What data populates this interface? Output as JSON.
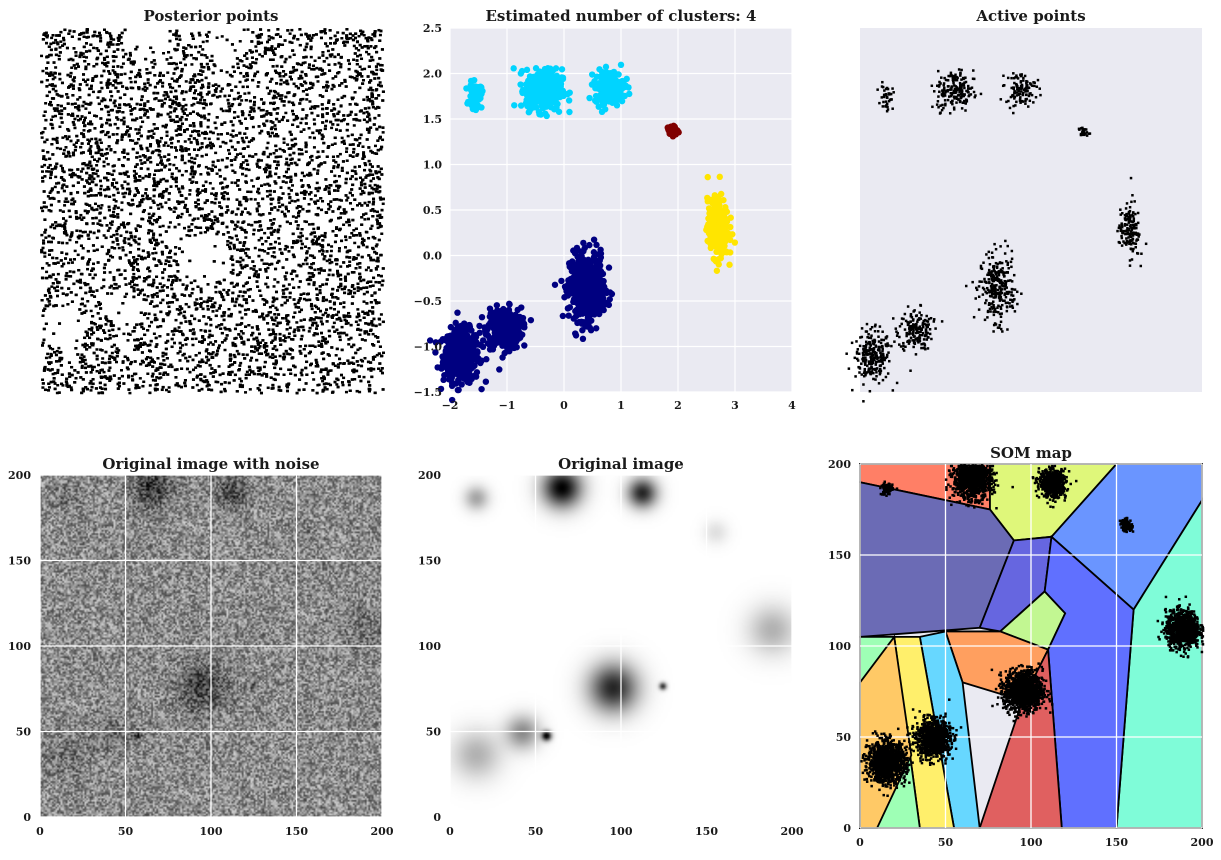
{
  "chart_data": [
    {
      "type": "scatter",
      "title": "Posterior points",
      "axes_visible": false,
      "background": "#ffffff",
      "point_color": "#000000",
      "description_points": "dense random black points; sparse gaps at cluster centers"
    },
    {
      "type": "scatter",
      "title": "Estimated number of clusters: 4",
      "xlim": [
        -2,
        4
      ],
      "ylim": [
        -1.5,
        2.5
      ],
      "xticks": [
        "−2",
        "−1",
        "0",
        "1",
        "2",
        "3",
        "4"
      ],
      "yticks": [
        "−1.5",
        "−1.0",
        "−0.5",
        "0.0",
        "0.5",
        "1.0",
        "1.5",
        "2.0",
        "2.5"
      ],
      "grid": true,
      "background": "#eaeaf2",
      "clusters": [
        {
          "color": "#000080",
          "blobs": [
            {
              "cx": -1.8,
              "cy": -1.1,
              "rx": 0.35,
              "ry": 0.32
            },
            {
              "cx": -1.05,
              "cy": -0.8,
              "rx": 0.33,
              "ry": 0.25
            },
            {
              "cx": 0.4,
              "cy": -0.35,
              "rx": 0.33,
              "ry": 0.4
            }
          ]
        },
        {
          "color": "#00d4ff",
          "blobs": [
            {
              "cx": -1.55,
              "cy": 1.75,
              "rx": 0.12,
              "ry": 0.15
            },
            {
              "cx": -0.35,
              "cy": 1.82,
              "rx": 0.35,
              "ry": 0.25
            },
            {
              "cx": 0.8,
              "cy": 1.85,
              "rx": 0.28,
              "ry": 0.2
            }
          ]
        },
        {
          "color": "#800000",
          "blobs": [
            {
              "cx": 1.9,
              "cy": 1.37,
              "rx": 0.1,
              "ry": 0.06
            }
          ]
        },
        {
          "color": "#ffe500",
          "blobs": [
            {
              "cx": 2.7,
              "cy": 0.3,
              "rx": 0.2,
              "ry": 0.35
            }
          ]
        }
      ]
    },
    {
      "type": "scatter",
      "title": "Active points",
      "axes_visible": false,
      "background": "#eaeaf2",
      "point_color": "#000000"
    },
    {
      "type": "heatmap",
      "title": "Original image with noise",
      "xlim": [
        0,
        200
      ],
      "ylim": [
        0,
        200
      ],
      "xticks": [
        "0",
        "50",
        "100",
        "150",
        "200"
      ],
      "yticks": [
        "0",
        "50",
        "100",
        "150",
        "200"
      ],
      "grid": true,
      "colormap": "gray"
    },
    {
      "type": "heatmap",
      "title": "Original image",
      "xlim": [
        0,
        200
      ],
      "ylim": [
        0,
        200
      ],
      "xticks": [
        "0",
        "50",
        "100",
        "150",
        "200"
      ],
      "yticks": [
        "0",
        "50",
        "100",
        "150",
        "200"
      ],
      "grid": true,
      "colormap": "gray",
      "sources": [
        {
          "x": 15,
          "y": 187,
          "sigma": 5,
          "amp": 0.35
        },
        {
          "x": 65,
          "y": 193,
          "sigma": 8,
          "amp": 1.0
        },
        {
          "x": 112,
          "y": 190,
          "sigma": 6,
          "amp": 0.85
        },
        {
          "x": 155,
          "y": 167,
          "sigma": 5,
          "amp": 0.12
        },
        {
          "x": 188,
          "y": 110,
          "sigma": 10,
          "amp": 0.3
        },
        {
          "x": 95,
          "y": 76,
          "sigma": 10,
          "amp": 0.85
        },
        {
          "x": 124,
          "y": 77,
          "sigma": 1.5,
          "amp": 0.8
        },
        {
          "x": 42,
          "y": 50,
          "sigma": 7,
          "amp": 0.45
        },
        {
          "x": 56,
          "y": 48,
          "sigma": 2,
          "amp": 1.0
        },
        {
          "x": 15,
          "y": 37,
          "sigma": 10,
          "amp": 0.3
        }
      ]
    },
    {
      "type": "scatter",
      "title": "SOM map",
      "xlim": [
        0,
        200
      ],
      "ylim": [
        0,
        200
      ],
      "xticks": [
        "0",
        "50",
        "100",
        "150",
        "200"
      ],
      "yticks": [
        "0",
        "50",
        "100",
        "150",
        "200"
      ],
      "grid": true,
      "voronoi_cells": [
        {
          "color": "#ff7f66",
          "poly": [
            [
              0,
              200
            ],
            [
              76,
              200
            ],
            [
              76,
              175
            ],
            [
              0,
              190
            ]
          ]
        },
        {
          "color": "#dff77a",
          "poly": [
            [
              76,
              200
            ],
            [
              150,
              200
            ],
            [
              112,
              160
            ],
            [
              90,
              158
            ],
            [
              76,
              175
            ]
          ]
        },
        {
          "color": "#6b6bb5",
          "poly": [
            [
              0,
              190
            ],
            [
              76,
              175
            ],
            [
              90,
              158
            ],
            [
              70,
              110
            ],
            [
              0,
              105
            ]
          ]
        },
        {
          "color": "#6a95ff",
          "poly": [
            [
              150,
              200
            ],
            [
              200,
              200
            ],
            [
              200,
              180
            ],
            [
              160,
              120
            ],
            [
              112,
              160
            ]
          ]
        },
        {
          "color": "#7ffcd8",
          "poly": [
            [
              200,
              180
            ],
            [
              200,
              0
            ],
            [
              150,
              0
            ],
            [
              160,
              120
            ]
          ]
        },
        {
          "color": "#6666e0",
          "poly": [
            [
              90,
              158
            ],
            [
              112,
              160
            ],
            [
              108,
              130
            ],
            [
              82,
              108
            ],
            [
              70,
              110
            ]
          ]
        },
        {
          "color": "#c2f792",
          "poly": [
            [
              108,
              130
            ],
            [
              120,
              118
            ],
            [
              110,
              98
            ],
            [
              82,
              108
            ]
          ]
        },
        {
          "color": "#6070ff",
          "poly": [
            [
              112,
              160
            ],
            [
              160,
              120
            ],
            [
              150,
              0
            ],
            [
              118,
              0
            ],
            [
              110,
              98
            ],
            [
              120,
              118
            ],
            [
              108,
              130
            ]
          ]
        },
        {
          "color": "#ff9f5f",
          "poly": [
            [
              50,
              108
            ],
            [
              82,
              108
            ],
            [
              110,
              98
            ],
            [
              95,
              70
            ],
            [
              60,
              80
            ]
          ]
        },
        {
          "color": "#e06060",
          "poly": [
            [
              95,
              70
            ],
            [
              110,
              98
            ],
            [
              118,
              0
            ],
            [
              70,
              0
            ]
          ]
        },
        {
          "color": "#67d7ff",
          "poly": [
            [
              35,
              105
            ],
            [
              50,
              108
            ],
            [
              60,
              80
            ],
            [
              70,
              0
            ],
            [
              55,
              0
            ]
          ]
        },
        {
          "color": "#ffef6b",
          "poly": [
            [
              20,
              105
            ],
            [
              35,
              105
            ],
            [
              55,
              0
            ],
            [
              35,
              0
            ]
          ]
        },
        {
          "color": "#9effb5",
          "poly": [
            [
              0,
              105
            ],
            [
              20,
              105
            ],
            [
              35,
              0
            ],
            [
              0,
              0
            ]
          ]
        },
        {
          "color": "#ffc966",
          "poly": [
            [
              0,
              80
            ],
            [
              20,
              105
            ],
            [
              30,
              40
            ],
            [
              10,
              0
            ],
            [
              0,
              0
            ]
          ]
        }
      ]
    }
  ]
}
